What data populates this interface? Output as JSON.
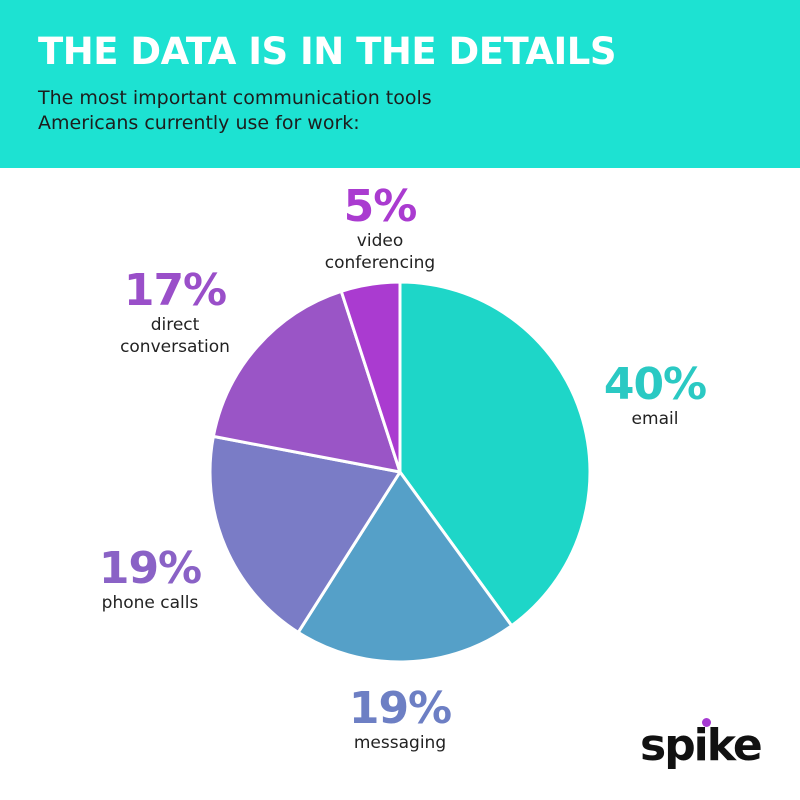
{
  "header": {
    "title": "THE DATA IS IN THE DETAILS",
    "subtitle_line1": "The most important communication tools",
    "subtitle_line2": "Americans currently use for work:"
  },
  "colors": {
    "header_bg": "#1de2d2",
    "email": "#1ed6c8",
    "messaging": "#55a0c8",
    "phone_calls": "#7a7cc6",
    "direct_conversation": "#9a55c6",
    "video_conferencing": "#aa3bd0",
    "logo_dot": "#a63ad2"
  },
  "chart_data": {
    "type": "pie",
    "title": "THE DATA IS IN THE DETAILS",
    "slices": [
      {
        "label": "email",
        "value": 40,
        "value_label": "40%",
        "color": "#1ed6c8",
        "label_color": "#2ac9c3"
      },
      {
        "label": "messaging",
        "value": 19,
        "value_label": "19%",
        "color": "#55a0c8",
        "label_color": "#6d7fc4"
      },
      {
        "label": "phone calls",
        "value": 19,
        "value_label": "19%",
        "color": "#7a7cc6",
        "label_color": "#8a62c6"
      },
      {
        "label": "direct conversation",
        "value": 17,
        "value_label": "17%",
        "color": "#9a55c6",
        "label_color": "#9a4fc9"
      },
      {
        "label": "video conferencing",
        "value": 5,
        "value_label": "5%",
        "color": "#aa3bd0",
        "label_color": "#aa3bd0"
      }
    ]
  },
  "labels": {
    "email": {
      "pct": "40%",
      "cat": "email"
    },
    "messaging": {
      "pct": "19%",
      "cat": "messaging"
    },
    "phone_calls": {
      "pct": "19%",
      "cat": "phone calls"
    },
    "direct_conversation": {
      "pct": "17%",
      "cat_line1": "direct",
      "cat_line2": "conversation"
    },
    "video_conferencing": {
      "pct": "5%",
      "cat_line1": "video",
      "cat_line2": "conferencing"
    }
  },
  "logo": {
    "text": "spike"
  }
}
